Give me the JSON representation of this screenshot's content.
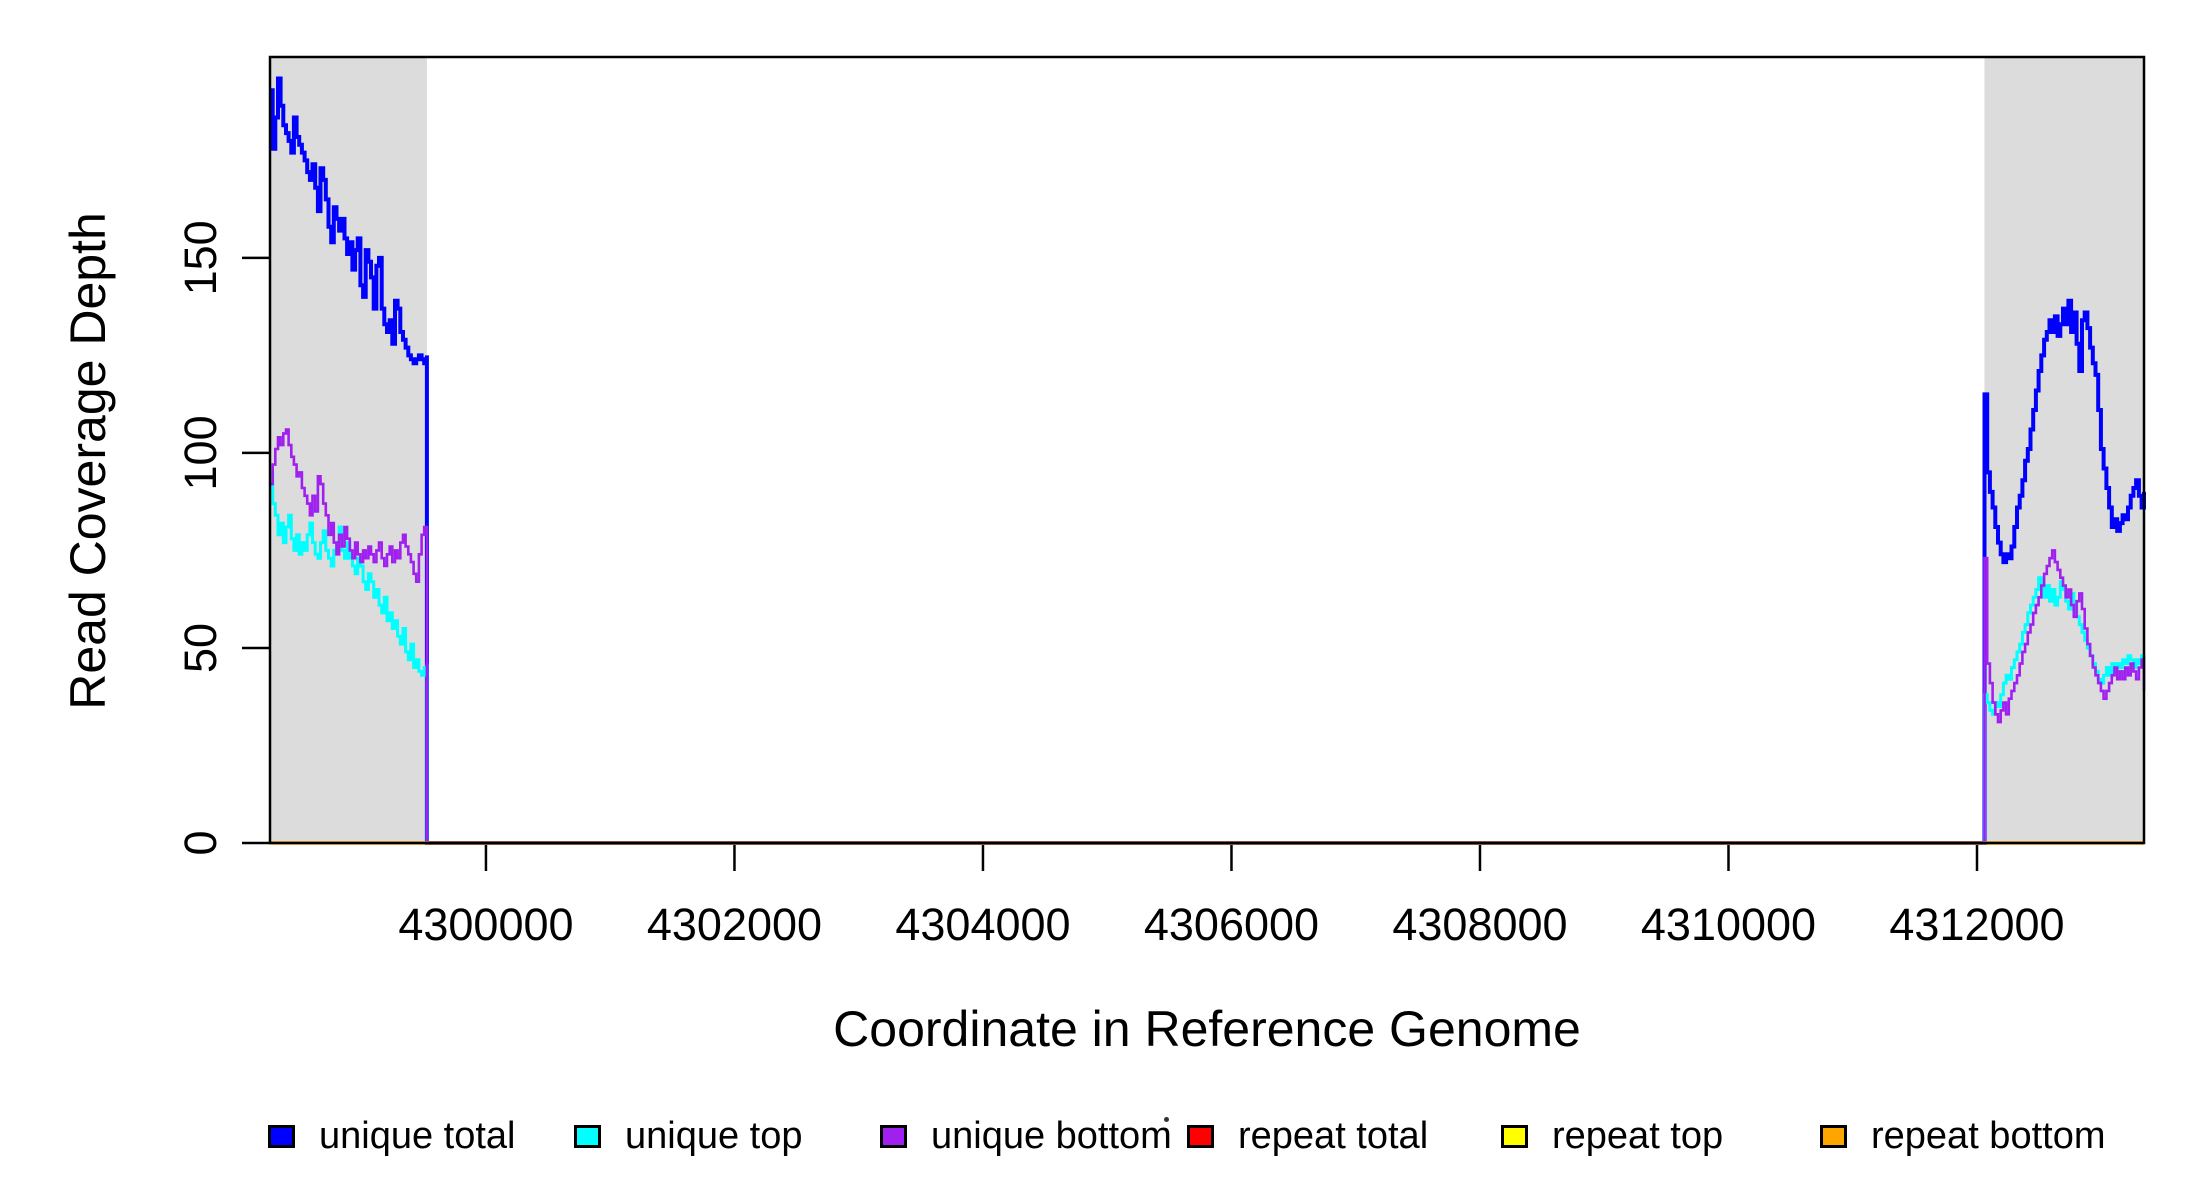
{
  "figure": {
    "x_axis_title": "Coordinate in Reference Genome",
    "y_axis_title": "Read Coverage Depth"
  },
  "legend": {
    "items": [
      {
        "label": "unique total",
        "color": "#0000FF"
      },
      {
        "label": "unique top",
        "color": "#00FFFF"
      },
      {
        "label": "unique bottom",
        "color": "#A020F0"
      },
      {
        "label": "repeat total",
        "color": "#FF0000"
      },
      {
        "label": "repeat top",
        "color": "#FFFF00"
      },
      {
        "label": "repeat bottom",
        "color": "#FFA500"
      }
    ]
  },
  "chart_data": {
    "type": "line",
    "title": "",
    "xlabel": "Coordinate in Reference Genome",
    "ylabel": "Read Coverage Depth",
    "xlim": [
      4298262,
      4313344
    ],
    "ylim": [
      0,
      201.5
    ],
    "x_ticks": [
      4300000,
      4302000,
      4304000,
      4306000,
      4308000,
      4310000,
      4312000
    ],
    "y_ticks": [
      0,
      50,
      100,
      150
    ],
    "grid": false,
    "legend_position": "bottom",
    "shaded_regions": [
      {
        "name": "left-repeat-flank",
        "x": [
          4298262,
          4299525
        ],
        "color": "#DCDCDC"
      },
      {
        "name": "right-repeat-flank",
        "x": [
          4312060,
          4313344
        ],
        "color": "#DCDCDC"
      }
    ],
    "series": [
      {
        "name": "unique total",
        "color": "#0000FF",
        "width": 4,
        "segments": [
          {
            "x0": 4298262,
            "dx": 21.4,
            "values": [
              193,
              178,
              186,
              196,
              189,
              184,
              182,
              180,
              177,
              186,
              181,
              179,
              177,
              175,
              172,
              170,
              174,
              168,
              162,
              173,
              170,
              165,
              158,
              154,
              163,
              160,
              157,
              160,
              155,
              151,
              154,
              147,
              152,
              155,
              143,
              140,
              152,
              149,
              145,
              137,
              148,
              150,
              137,
              133,
              131,
              134,
              128,
              139,
              137,
              131,
              129,
              127,
              125,
              124,
              123,
              124,
              125,
              124,
              123,
              125
            ]
          },
          {
            "x0": 4299525,
            "dx": 12535,
            "values": [
              0,
              0
            ]
          },
          {
            "x0": 4312060,
            "dx": 21.8,
            "values": [
              115,
              95,
              90,
              86,
              81,
              77,
              74,
              72,
              74,
              73,
              76,
              81,
              86,
              89,
              93,
              98,
              101,
              106,
              111,
              116,
              121,
              125,
              129,
              131,
              134,
              131,
              135,
              130,
              133,
              137,
              133,
              139,
              131,
              136,
              128,
              121,
              134,
              136,
              132,
              127,
              123,
              120,
              111,
              101,
              96,
              91,
              86,
              81,
              83,
              80,
              82,
              84,
              83,
              86,
              89,
              91,
              93,
              89,
              86,
              90
            ]
          }
        ]
      },
      {
        "name": "unique top",
        "color": "#00FFFF",
        "width": 3,
        "segments": [
          {
            "x0": 4298262,
            "dx": 21.4,
            "values": [
              95,
              87,
              84,
              79,
              82,
              77,
              81,
              84,
              78,
              75,
              79,
              74,
              77,
              75,
              79,
              82,
              77,
              74,
              73,
              77,
              80,
              75,
              73,
              71,
              75,
              77,
              81,
              75,
              73,
              77,
              73,
              71,
              69,
              73,
              71,
              67,
              65,
              69,
              67,
              63,
              65,
              61,
              59,
              63,
              57,
              59,
              55,
              57,
              53,
              51,
              55,
              49,
              47,
              51,
              45,
              47,
              44,
              43,
              45,
              46
            ]
          },
          {
            "x0": 4299525,
            "dx": 12535,
            "values": [
              0,
              0
            ]
          },
          {
            "x0": 4312060,
            "dx": 21.8,
            "values": [
              38,
              36,
              34,
              33,
              36,
              35,
              38,
              41,
              43,
              42,
              45,
              47,
              49,
              51,
              54,
              56,
              59,
              61,
              63,
              65,
              68,
              66,
              63,
              66,
              62,
              65,
              61,
              63,
              67,
              65,
              62,
              60,
              64,
              61,
              58,
              56,
              54,
              52,
              50,
              48,
              46,
              44,
              42,
              41,
              43,
              45,
              43,
              46,
              44,
              46,
              45,
              47,
              46,
              48,
              47,
              45,
              47,
              46,
              48,
              47
            ]
          }
        ]
      },
      {
        "name": "unique bottom",
        "color": "#A020F0",
        "width": 2.6,
        "segments": [
          {
            "x0": 4298262,
            "dx": 21.4,
            "values": [
              92,
              97,
              101,
              104,
              102,
              105,
              106,
              102,
              99,
              97,
              94,
              95,
              91,
              89,
              87,
              84,
              89,
              85,
              94,
              92,
              87,
              84,
              79,
              82,
              77,
              74,
              79,
              76,
              81,
              78,
              75,
              73,
              77,
              74,
              72,
              75,
              73,
              76,
              74,
              72,
              75,
              77,
              73,
              71,
              74,
              76,
              72,
              75,
              73,
              77,
              79,
              76,
              74,
              72,
              69,
              67,
              74,
              79,
              81,
              78
            ]
          },
          {
            "x0": 4299525,
            "dx": 12535,
            "values": [
              0,
              0
            ]
          },
          {
            "x0": 4312060,
            "dx": 21.8,
            "values": [
              73,
              46,
              41,
              36,
              33,
              31,
              34,
              36,
              33,
              37,
              39,
              41,
              43,
              46,
              49,
              51,
              54,
              56,
              59,
              61,
              63,
              66,
              69,
              71,
              73,
              75,
              72,
              70,
              68,
              66,
              63,
              65,
              61,
              58,
              62,
              64,
              60,
              55,
              51,
              48,
              45,
              43,
              41,
              39,
              37,
              39,
              41,
              43,
              45,
              42,
              44,
              42,
              45,
              43,
              46,
              44,
              42,
              45,
              47,
              39
            ]
          }
        ]
      },
      {
        "name": "repeat total",
        "color": "#FF0000",
        "width": 3,
        "segments": [
          {
            "x0": 4298262,
            "dx": 1263,
            "values": [
              0,
              0
            ]
          },
          {
            "x0": 4312060,
            "dx": 1284,
            "values": [
              0,
              0
            ]
          }
        ]
      },
      {
        "name": "repeat top",
        "color": "#FFFF00",
        "width": 3,
        "segments": [
          {
            "x0": 4298262,
            "dx": 1263,
            "values": [
              0,
              0
            ]
          },
          {
            "x0": 4312060,
            "dx": 1284,
            "values": [
              0,
              0
            ]
          }
        ]
      },
      {
        "name": "repeat bottom",
        "color": "#FFA500",
        "width": 3.5,
        "segments": [
          {
            "x0": 4298262,
            "dx": 1263,
            "values": [
              0,
              0
            ]
          },
          {
            "x0": 4312060,
            "dx": 1284,
            "values": [
              0,
              0
            ]
          }
        ]
      }
    ]
  }
}
